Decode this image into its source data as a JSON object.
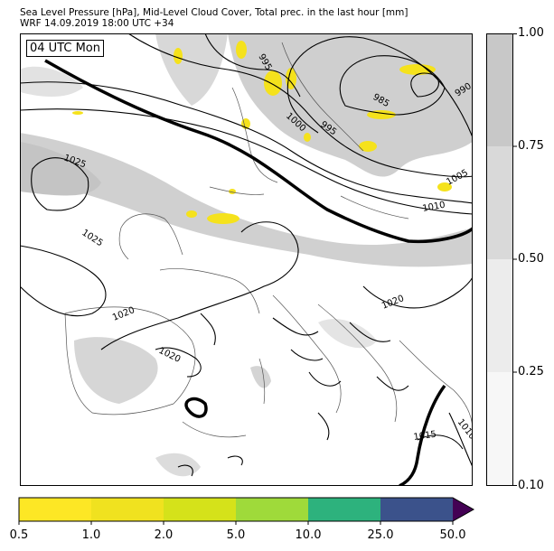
{
  "title": {
    "line1": "Sea Level Pressure [hPa], Mid-Level Cloud Cover, Total prec. in the last hour [mm]",
    "line2": "WRF 14.09.2019 18:00 UTC +34"
  },
  "time_label": "04 UTC Mon",
  "isobar_labels": [
    "995",
    "1000",
    "995",
    "985",
    "990",
    "1005",
    "1010",
    "1025",
    "1025",
    "1020",
    "1020",
    "1020",
    "1015",
    "1010"
  ],
  "cloud_colorbar": {
    "ticks": [
      "1.00",
      "0.75",
      "0.50",
      "0.25",
      "0.10"
    ],
    "colors": [
      "#c8c8c8",
      "#d9d9d9",
      "#ececec",
      "#f7f7f7"
    ]
  },
  "precip_colorbar": {
    "ticks": [
      "0.5",
      "1.0",
      "2.0",
      "5.0",
      "10.0",
      "25.0",
      "50.0"
    ],
    "colors": [
      "#fde725",
      "#f0e21f",
      "#d5e21a",
      "#9fda3a",
      "#2db27d",
      "#3b528b",
      "#440154"
    ]
  }
}
